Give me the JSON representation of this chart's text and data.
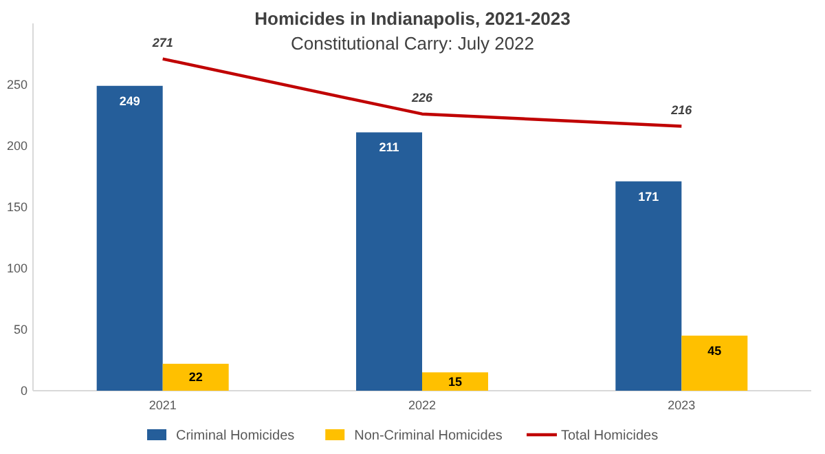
{
  "chart_data": {
    "type": "bar",
    "title": "Homicides in Indianapolis, 2021-2023",
    "subtitle": "Constitutional Carry: July 2022",
    "categories": [
      "2021",
      "2022",
      "2023"
    ],
    "series": [
      {
        "name": "Criminal Homicides",
        "color": "#255e9a",
        "values": [
          249,
          211,
          171
        ]
      },
      {
        "name": "Non-Criminal Homicides",
        "color": "#ffc000",
        "values": [
          22,
          15,
          45
        ]
      },
      {
        "name": "Total Homicides",
        "type": "line",
        "color": "#c00000",
        "values": [
          271,
          226,
          216
        ]
      }
    ],
    "ylim": [
      0,
      300
    ],
    "yticks": [
      0,
      50,
      100,
      150,
      200,
      250
    ],
    "data_labels": true,
    "legend": "bottom"
  }
}
